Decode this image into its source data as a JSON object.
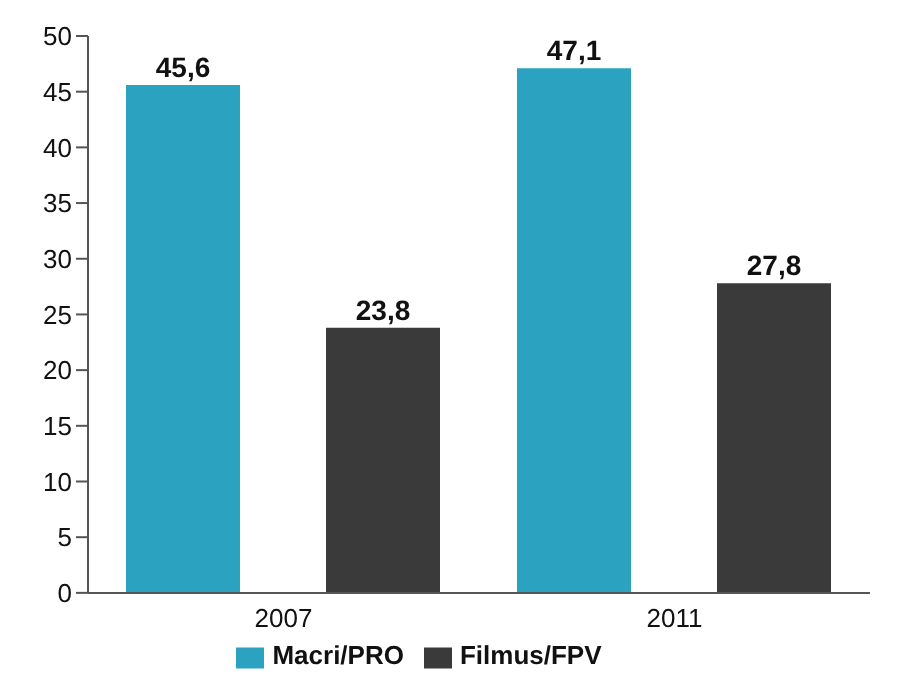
{
  "chart_data": {
    "type": "bar",
    "categories": [
      "2007",
      "2011"
    ],
    "series": [
      {
        "name": "Macri/PRO",
        "color": "#2ba3c0",
        "values": [
          45.6,
          47.1
        ],
        "value_labels": [
          "45,6",
          "47,1"
        ]
      },
      {
        "name": "Filmus/FPV",
        "color": "#3a3a3a",
        "values": [
          23.8,
          27.8
        ],
        "value_labels": [
          "23,8",
          "27,8"
        ]
      }
    ],
    "ylim": [
      0,
      50
    ],
    "yticks": [
      0,
      5,
      10,
      15,
      20,
      25,
      30,
      35,
      40,
      45,
      50
    ],
    "grid": false,
    "legend": "bottom"
  }
}
